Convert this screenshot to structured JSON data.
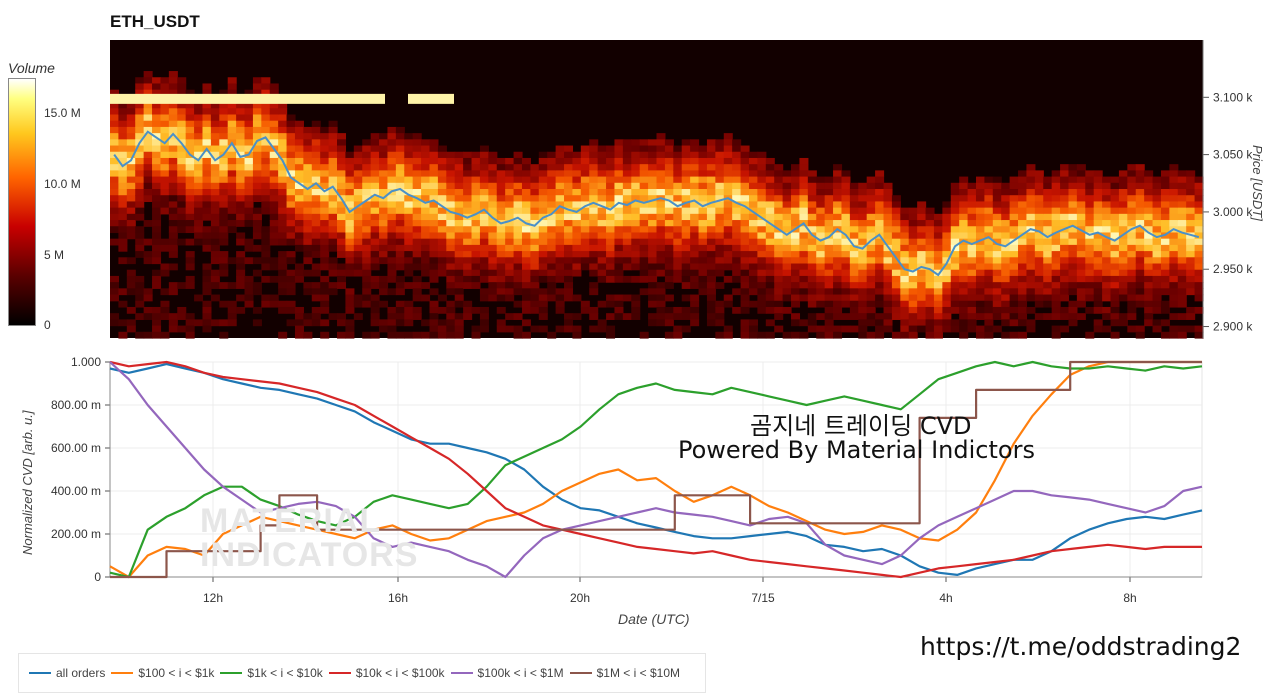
{
  "title": "ETH_USDT",
  "colorbar": {
    "label": "Volume",
    "ticks": [
      "15.0 M",
      "10.0 M",
      "5 M",
      "0"
    ]
  },
  "watermark": [
    "MATERIAL",
    "INDICATORS"
  ],
  "overlay": {
    "line1": "곰지네 트레이딩 CVD",
    "line2": "Powered By Material Indictors"
  },
  "link": "https://t.me/oddstrading2",
  "chart_data": [
    {
      "type": "heatmap",
      "ylabel": "Price [USDT]",
      "y_ticks": [
        "3.100 k",
        "3.050 k",
        "3.000 k",
        "2.950 k",
        "2.900 k"
      ],
      "y_tick_values": [
        3100,
        3050,
        3000,
        2950,
        2900
      ],
      "ylim": [
        2890,
        3150
      ],
      "price_series": [
        3050,
        3040,
        3045,
        3060,
        3070,
        3065,
        3060,
        3068,
        3060,
        3050,
        3045,
        3055,
        3045,
        3050,
        3060,
        3048,
        3050,
        3062,
        3065,
        3055,
        3045,
        3030,
        3025,
        3020,
        3025,
        3018,
        3022,
        3012,
        3000,
        3005,
        3010,
        3015,
        3012,
        3018,
        3020,
        3015,
        3012,
        3008,
        3010,
        3005,
        3000,
        2998,
        2995,
        2998,
        3002,
        2995,
        2990,
        2992,
        2995,
        2990,
        2988,
        2995,
        2998,
        3005,
        3002,
        3000,
        3005,
        3008,
        3005,
        3002,
        3008,
        3006,
        3010,
        3008,
        3010,
        3012,
        3010,
        3005,
        3008,
        3010,
        3005,
        3008,
        3010,
        3012,
        3008,
        3005,
        3000,
        2995,
        2990,
        2985,
        2980,
        2985,
        2990,
        2980,
        2975,
        2978,
        2985,
        2980,
        2970,
        2968,
        2975,
        2980,
        2970,
        2960,
        2950,
        2948,
        2952,
        2950,
        2945,
        2955,
        2970,
        2975,
        2972,
        2975,
        2978,
        2972,
        2970,
        2975,
        2980,
        2985,
        2983,
        2978,
        2982,
        2985,
        2988,
        2984,
        2980,
        2982,
        2978,
        2975,
        2980,
        2985,
        2988,
        2982,
        2978,
        2980,
        2985,
        2982,
        2980,
        2978
      ]
    },
    {
      "type": "line",
      "xlabel": "Date (UTC)",
      "ylabel": "Normalized CVD [arb. u.]",
      "x_ticks": [
        "12h",
        "16h",
        "20h",
        "7/15",
        "4h",
        "8h"
      ],
      "y_ticks": [
        "1.000",
        "800.00 m",
        "600.00 m",
        "400.00 m",
        "200.00 m",
        "0"
      ],
      "y_tick_values": [
        1.0,
        0.8,
        0.6,
        0.4,
        0.2,
        0
      ],
      "ylim": [
        0,
        1
      ],
      "legend_position": "bottom",
      "series": [
        {
          "name": "all orders",
          "color": "#1f77b4",
          "values": [
            0.97,
            0.95,
            0.97,
            0.99,
            0.97,
            0.95,
            0.92,
            0.9,
            0.88,
            0.87,
            0.85,
            0.83,
            0.8,
            0.77,
            0.72,
            0.68,
            0.64,
            0.62,
            0.62,
            0.6,
            0.58,
            0.55,
            0.5,
            0.42,
            0.36,
            0.32,
            0.31,
            0.28,
            0.25,
            0.23,
            0.21,
            0.19,
            0.18,
            0.18,
            0.19,
            0.2,
            0.21,
            0.19,
            0.15,
            0.14,
            0.12,
            0.13,
            0.1,
            0.05,
            0.02,
            0.01,
            0.04,
            0.06,
            0.08,
            0.08,
            0.12,
            0.18,
            0.22,
            0.25,
            0.27,
            0.28,
            0.27,
            0.29,
            0.31
          ]
        },
        {
          "name": "$100 < i < $1k",
          "color": "#ff7f0e",
          "values": [
            0.05,
            0.0,
            0.1,
            0.14,
            0.13,
            0.1,
            0.2,
            0.24,
            0.28,
            0.26,
            0.24,
            0.22,
            0.2,
            0.18,
            0.22,
            0.24,
            0.2,
            0.17,
            0.18,
            0.22,
            0.26,
            0.28,
            0.3,
            0.34,
            0.4,
            0.44,
            0.48,
            0.5,
            0.45,
            0.46,
            0.4,
            0.35,
            0.38,
            0.42,
            0.38,
            0.33,
            0.3,
            0.26,
            0.22,
            0.2,
            0.21,
            0.24,
            0.22,
            0.18,
            0.17,
            0.22,
            0.3,
            0.45,
            0.62,
            0.75,
            0.85,
            0.94,
            0.98,
            1.0,
            1.0,
            1.0,
            1.0,
            1.0,
            1.0
          ]
        },
        {
          "name": "$1k < i < $10k",
          "color": "#2ca02c",
          "values": [
            0.02,
            0.0,
            0.22,
            0.28,
            0.32,
            0.38,
            0.42,
            0.42,
            0.36,
            0.33,
            0.29,
            0.26,
            0.24,
            0.28,
            0.35,
            0.38,
            0.36,
            0.34,
            0.32,
            0.34,
            0.42,
            0.52,
            0.56,
            0.6,
            0.64,
            0.7,
            0.78,
            0.85,
            0.88,
            0.9,
            0.87,
            0.86,
            0.85,
            0.88,
            0.86,
            0.84,
            0.82,
            0.8,
            0.82,
            0.84,
            0.82,
            0.8,
            0.78,
            0.85,
            0.92,
            0.95,
            0.98,
            1.0,
            0.98,
            1.0,
            0.98,
            0.97,
            0.97,
            0.98,
            0.97,
            0.96,
            0.98,
            0.97,
            0.98
          ]
        },
        {
          "name": "$10k < i < $100k",
          "color": "#d62728",
          "values": [
            1.0,
            0.98,
            0.99,
            1.0,
            0.98,
            0.95,
            0.93,
            0.92,
            0.91,
            0.9,
            0.88,
            0.86,
            0.83,
            0.8,
            0.75,
            0.7,
            0.65,
            0.6,
            0.55,
            0.48,
            0.4,
            0.32,
            0.28,
            0.24,
            0.22,
            0.2,
            0.18,
            0.16,
            0.14,
            0.13,
            0.12,
            0.11,
            0.12,
            0.1,
            0.08,
            0.07,
            0.06,
            0.05,
            0.04,
            0.03,
            0.02,
            0.01,
            0.0,
            0.02,
            0.04,
            0.05,
            0.06,
            0.07,
            0.08,
            0.1,
            0.12,
            0.13,
            0.14,
            0.15,
            0.14,
            0.13,
            0.14,
            0.14,
            0.14
          ]
        },
        {
          "name": "$100k < i < $1M",
          "color": "#9467bd",
          "values": [
            1.0,
            0.92,
            0.8,
            0.7,
            0.6,
            0.5,
            0.42,
            0.36,
            0.3,
            0.32,
            0.34,
            0.35,
            0.33,
            0.28,
            0.18,
            0.14,
            0.16,
            0.14,
            0.12,
            0.08,
            0.05,
            0.0,
            0.1,
            0.18,
            0.22,
            0.24,
            0.26,
            0.28,
            0.3,
            0.32,
            0.3,
            0.29,
            0.28,
            0.26,
            0.24,
            0.27,
            0.28,
            0.25,
            0.15,
            0.1,
            0.08,
            0.06,
            0.1,
            0.18,
            0.24,
            0.28,
            0.32,
            0.36,
            0.4,
            0.4,
            0.38,
            0.37,
            0.36,
            0.34,
            0.32,
            0.3,
            0.33,
            0.4,
            0.42
          ]
        },
        {
          "name": "$1M < i < $10M",
          "color": "#8c564b",
          "values": [
            0.0,
            0.0,
            0.0,
            0.12,
            0.12,
            0.12,
            0.12,
            0.12,
            0.24,
            0.38,
            0.38,
            0.22,
            0.22,
            0.22,
            0.22,
            0.22,
            0.22,
            0.22,
            0.22,
            0.22,
            0.22,
            0.22,
            0.22,
            0.22,
            0.22,
            0.22,
            0.22,
            0.22,
            0.22,
            0.22,
            0.38,
            0.38,
            0.38,
            0.38,
            0.25,
            0.25,
            0.25,
            0.25,
            0.25,
            0.25,
            0.25,
            0.25,
            0.25,
            0.74,
            0.74,
            0.74,
            0.87,
            0.87,
            0.87,
            0.87,
            0.87,
            1.0,
            1.0,
            1.0,
            1.0,
            1.0,
            1.0,
            1.0,
            1.0
          ]
        }
      ]
    }
  ]
}
